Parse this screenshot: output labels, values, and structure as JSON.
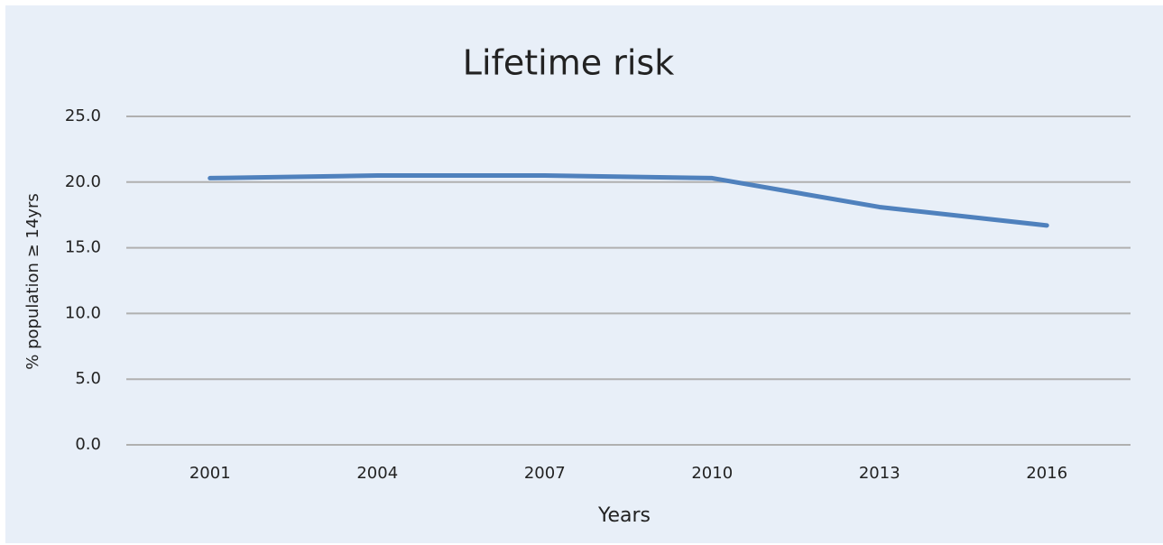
{
  "chart_data": {
    "type": "line",
    "title": "Lifetime risk",
    "x_label": "Years",
    "y_label": "% population ≥ 14yrs",
    "categories": [
      "2001",
      "2004",
      "2007",
      "2010",
      "2013",
      "2016"
    ],
    "series": [
      {
        "name": "Lifetime risk",
        "color": "#4f81bd",
        "values": [
          20.3,
          20.5,
          20.5,
          20.3,
          18.1,
          16.7
        ]
      }
    ],
    "ylim": [
      0,
      25
    ],
    "yticks": [
      {
        "value": 0,
        "label": "0.0"
      },
      {
        "value": 5,
        "label": "5.0"
      },
      {
        "value": 10,
        "label": "10.0"
      },
      {
        "value": 15,
        "label": "15.0"
      },
      {
        "value": 20,
        "label": "20.0"
      },
      {
        "value": 25,
        "label": "25.0"
      }
    ],
    "grid": true
  }
}
